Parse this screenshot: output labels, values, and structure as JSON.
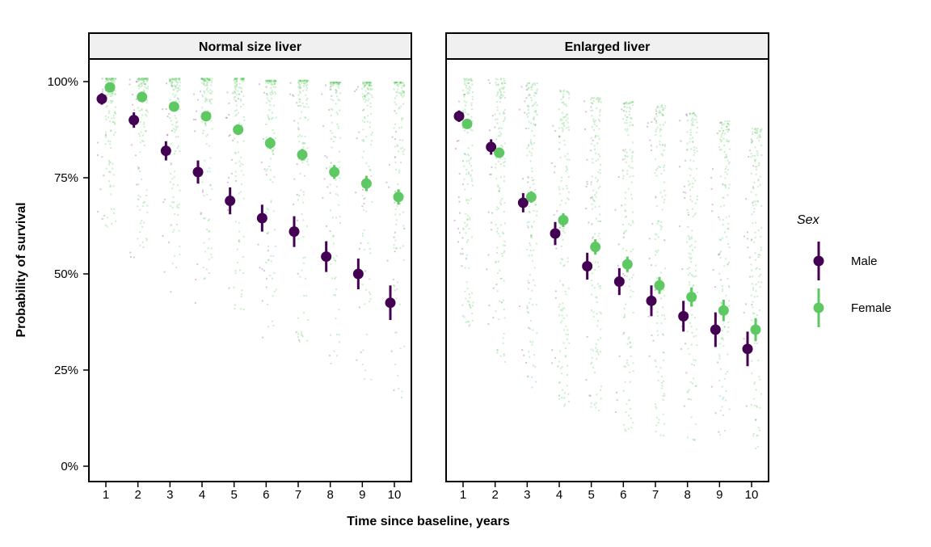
{
  "chart_data": {
    "type": "scatter",
    "subtype": "pointrange-with-jittered-draws",
    "xlabel": "Time since baseline, years",
    "ylabel": "Probability of survival",
    "x_ticks": [
      1,
      2,
      3,
      4,
      5,
      6,
      7,
      8,
      9,
      10
    ],
    "y_ticks": {
      "values": [
        100,
        75,
        50,
        25,
        0
      ],
      "labels": [
        "100%",
        "75%",
        "50%",
        "25%",
        "0%"
      ]
    },
    "ylim": [
      0,
      100
    ],
    "grid": "off",
    "legend": {
      "title": "Sex",
      "position": "right",
      "entries": [
        {
          "label": "Male",
          "color": "#440154"
        },
        {
          "label": "Female",
          "color": "#5ec962"
        }
      ]
    },
    "facets": [
      {
        "label": "Normal size liver",
        "series": [
          {
            "name": "Male",
            "color": "#440154",
            "x": [
              1,
              2,
              3,
              4,
              5,
              6,
              7,
              8,
              9,
              10
            ],
            "y": [
              95.5,
              90,
              82,
              76.5,
              69,
              64.5,
              61,
              54.5,
              50,
              42.5
            ],
            "ci_half_width": [
              1.5,
              2,
              2.5,
              3,
              3.5,
              3.5,
              4,
              4,
              4,
              4.5
            ]
          },
          {
            "name": "Female",
            "color": "#5ec962",
            "x": [
              1,
              2,
              3,
              4,
              5,
              6,
              7,
              8,
              9,
              10
            ],
            "y": [
              98.5,
              96,
              93.5,
              91,
              87.5,
              84,
              81,
              76.5,
              73.5,
              70
            ],
            "ci_half_width": [
              0.8,
              1,
              1,
              1.2,
              1.4,
              1.5,
              1.5,
              1.8,
              2,
              2
            ]
          }
        ],
        "jitter_strips": {
          "female": {
            "tops": [
              101,
              101,
              101,
              101,
              101,
              100.5,
              100.5,
              100,
              100,
              100
            ],
            "bottoms": [
              62,
              56,
              50,
              45,
              40,
              35,
              30,
              26,
              22,
              18
            ],
            "power": 3.2,
            "count": 120,
            "rgba": "rgba(94,201,98,0.32)"
          },
          "male": {
            "tops": [
              101,
              101,
              101,
              101,
              101,
              100.5,
              100,
              100,
              99,
              98
            ],
            "bottoms": [
              55,
              50,
              45,
              40,
              36,
              32,
              28,
              25,
              22,
              18
            ],
            "power": 1.6,
            "count": 17,
            "rgba": "rgba(68,1,84,0.22)"
          }
        }
      },
      {
        "label": "Enlarged liver",
        "series": [
          {
            "name": "Male",
            "color": "#440154",
            "x": [
              1,
              2,
              3,
              4,
              5,
              6,
              7,
              8,
              9,
              10
            ],
            "y": [
              91,
              83,
              68.5,
              60.5,
              52,
              48,
              43,
              39,
              35.5,
              30.5
            ],
            "ci_half_width": [
              1.5,
              2,
              2.5,
              3,
              3.5,
              3.5,
              4,
              4,
              4.5,
              4.5
            ]
          },
          {
            "name": "Female",
            "color": "#5ec962",
            "x": [
              1,
              2,
              3,
              4,
              5,
              6,
              7,
              8,
              9,
              10
            ],
            "y": [
              89,
              81.5,
              70,
              64,
              57,
              52.5,
              47,
              44,
              40.5,
              35.5
            ],
            "ci_half_width": [
              1,
              1.2,
              1.5,
              1.8,
              2,
              2,
              2.2,
              2.5,
              2.8,
              3
            ]
          }
        ],
        "jitter_strips": {
          "female": {
            "tops": [
              101,
              101,
              100,
              98,
              96,
              95,
              94,
              92,
              90,
              88
            ],
            "bottoms": [
              32,
              27,
              20,
              15,
              11,
              9,
              8,
              6,
              5,
              4
            ],
            "power": 1.7,
            "count": 140,
            "rgba": "rgba(94,201,98,0.32)"
          },
          "male": {
            "tops": [
              101,
              101,
              100,
              98,
              96,
              95,
              94,
              92,
              90,
              88
            ],
            "bottoms": [
              40,
              34,
              27,
              22,
              17,
              14,
              12,
              10,
              8,
              7
            ],
            "power": 1.4,
            "count": 20,
            "rgba": "rgba(68,1,84,0.22)"
          }
        }
      }
    ],
    "colors": {
      "male": "#440154",
      "female": "#5ec962",
      "strip_background": "#f0f0f0",
      "panel_border": "#000000"
    }
  }
}
